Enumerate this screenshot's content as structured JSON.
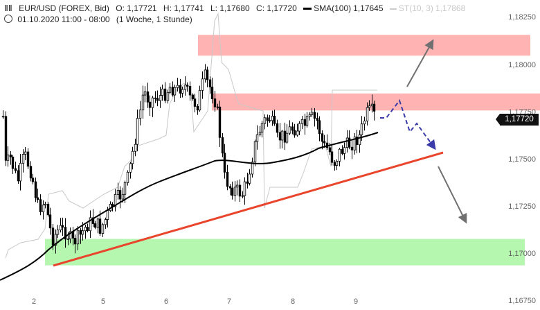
{
  "header": {
    "chart_icon": "candlestick-icon",
    "symbol": "EUR/USD (FOREX, Bid)",
    "open": "O: 1,17721",
    "high": "H: 1,17741",
    "low": "L: 1,17680",
    "close": "C: 1,17720",
    "sma_label": "SMA(100)",
    "sma_value": "1,17645",
    "st_label": "ST(10, 3)",
    "st_value": "1,17868",
    "clock_icon": "clock-icon",
    "period": "01.10.2020 11:00 - 08:00",
    "interval": "(1 Woche, 1 Stunde)"
  },
  "current_price": "1,17720",
  "chart_data": {
    "type": "candlestick",
    "y_ticks": [
      "1,18250",
      "1,18000",
      "1,17750",
      "1,17500",
      "1,17250",
      "1,17000",
      "1,16750"
    ],
    "x_ticks": [
      "2",
      "5",
      "6",
      "7",
      "8",
      "9"
    ],
    "ylim": [
      1.1675,
      1.1825
    ],
    "zones": [
      {
        "name": "resistance-upper",
        "y_low": 1.1805,
        "y_high": 1.1816,
        "color": "#ffb3b3"
      },
      {
        "name": "resistance-mid",
        "y_low": 1.1776,
        "y_high": 1.1785,
        "color": "#ffb3b3"
      },
      {
        "name": "support",
        "y_low": 1.1694,
        "y_high": 1.1708,
        "color": "#b6f7b0"
      }
    ],
    "sma_color": "#000000",
    "trendline_color": "#e8452c",
    "projection_color": "#3a3aa8",
    "arrow_color": "#707070"
  }
}
